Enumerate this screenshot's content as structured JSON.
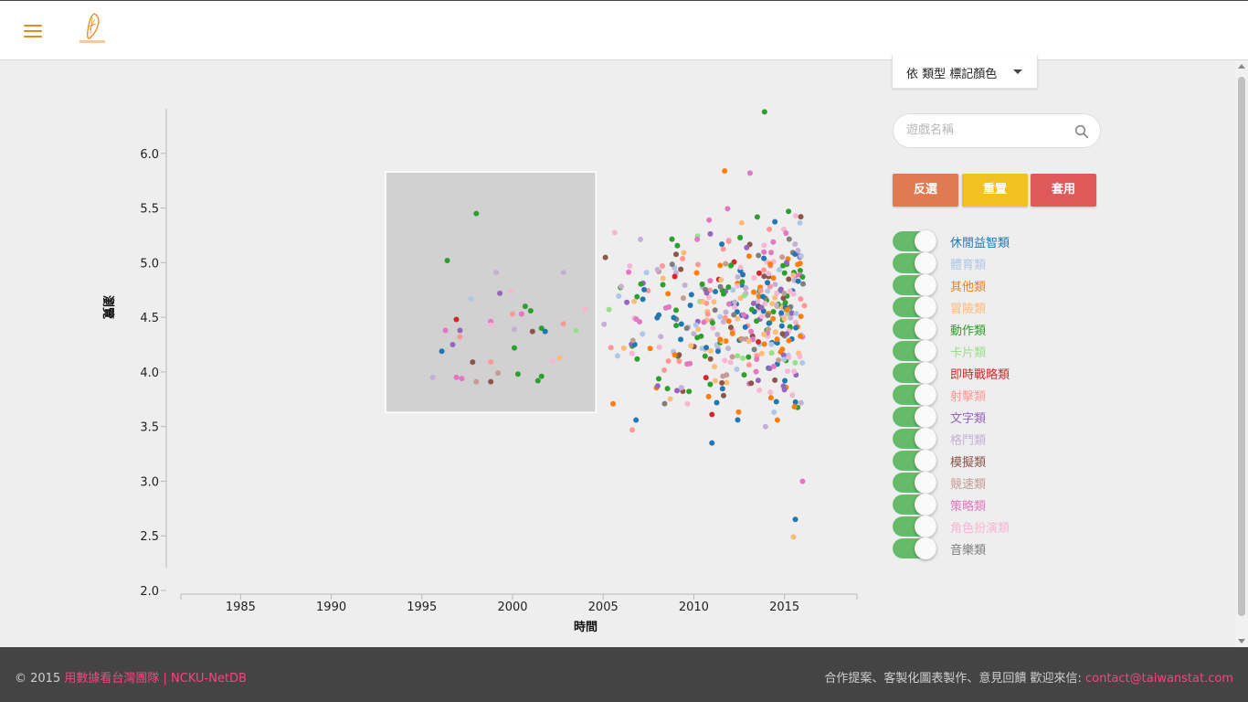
{
  "header": {
    "menu_icon": "hamburger-menu-icon",
    "logo_icon": "taiwan-logo-icon",
    "logo_color": "#f0861f"
  },
  "sidebar": {
    "color_select_label": "依 類型 標記顏色",
    "search_placeholder": "遊戲名稱",
    "buttons": {
      "invert": "反選",
      "reset": "重置",
      "apply": "套用"
    },
    "categories": [
      {
        "label": "休閒益智類",
        "color": "#1f77b4"
      },
      {
        "label": "體育類",
        "color": "#aec7e8"
      },
      {
        "label": "其他類",
        "color": "#ff7f0e"
      },
      {
        "label": "冒險類",
        "color": "#ffbb78"
      },
      {
        "label": "動作類",
        "color": "#2ca02c"
      },
      {
        "label": "卡片類",
        "color": "#98df8a"
      },
      {
        "label": "即時戰略類",
        "color": "#d62728"
      },
      {
        "label": "射擊類",
        "color": "#ff9896"
      },
      {
        "label": "文字類",
        "color": "#9467bd"
      },
      {
        "label": "格鬥類",
        "color": "#c5b0d5"
      },
      {
        "label": "模擬類",
        "color": "#8c564b"
      },
      {
        "label": "競速類",
        "color": "#c49c94"
      },
      {
        "label": "策略類",
        "color": "#e377c2"
      },
      {
        "label": "角色扮演類",
        "color": "#f7b6d2"
      },
      {
        "label": "音樂類",
        "color": "#7f7f7f"
      }
    ]
  },
  "chart_data": {
    "type": "scatter",
    "xlabel": "時間",
    "ylabel": "瀏覽",
    "xlim": [
      1981,
      2019
    ],
    "ylim": [
      2.0,
      6.4
    ],
    "x_ticks": [
      "1985",
      "1990",
      "1995",
      "2000",
      "2005",
      "2010",
      "2015"
    ],
    "y_ticks": [
      "2.0",
      "2.5",
      "3.0",
      "3.5",
      "4.0",
      "4.5",
      "5.0",
      "5.5",
      "6.0"
    ],
    "selection": {
      "x": [
        1993,
        2004.6
      ],
      "y": [
        3.63,
        5.83
      ]
    },
    "points": [
      [
        1996.4,
        5.02,
        4
      ],
      [
        1998.0,
        5.45,
        4
      ],
      [
        1997.7,
        4.67,
        1
      ],
      [
        1999.1,
        4.91,
        9
      ],
      [
        2002.8,
        4.91,
        9
      ],
      [
        1999.9,
        4.74,
        13
      ],
      [
        1999.3,
        4.72,
        8
      ],
      [
        2000.7,
        4.6,
        4
      ],
      [
        2001.0,
        4.56,
        4
      ],
      [
        2000.5,
        4.53,
        12
      ],
      [
        2000.0,
        4.53,
        7
      ],
      [
        1996.3,
        4.38,
        12
      ],
      [
        1997.1,
        4.38,
        8
      ],
      [
        1997.1,
        4.32,
        7
      ],
      [
        1996.9,
        4.48,
        6
      ],
      [
        1998.8,
        4.46,
        12
      ],
      [
        1998.8,
        4.43,
        13
      ],
      [
        2000.1,
        4.39,
        9
      ],
      [
        2001.1,
        4.37,
        10
      ],
      [
        2001.6,
        4.4,
        4
      ],
      [
        2001.8,
        4.37,
        0
      ],
      [
        2002.8,
        4.44,
        7
      ],
      [
        2003.5,
        4.38,
        5
      ],
      [
        2004.0,
        4.57,
        13
      ],
      [
        1996.7,
        4.25,
        8
      ],
      [
        1996.1,
        4.19,
        0
      ],
      [
        2000.1,
        4.22,
        4
      ],
      [
        1997.8,
        4.09,
        10
      ],
      [
        1998.8,
        4.09,
        7
      ],
      [
        2002.6,
        4.13,
        3
      ],
      [
        1999.2,
        3.99,
        11
      ],
      [
        2000.3,
        3.98,
        4
      ],
      [
        1996.9,
        3.95,
        12
      ],
      [
        1997.2,
        3.94,
        12
      ],
      [
        1995.6,
        3.95,
        9
      ],
      [
        1998.8,
        3.91,
        10
      ],
      [
        2001.4,
        3.92,
        4
      ],
      [
        2001.6,
        3.96,
        4
      ],
      [
        1998.0,
        3.91,
        11
      ],
      [
        2002.2,
        4.1,
        13
      ]
    ]
  },
  "footer": {
    "copyright_prefix": "© 2015",
    "team_link": "用數據看台灣團隊",
    "separator": "|",
    "lab_link": "NCKU-NetDB",
    "contact_text": "合作提案、客製化圖表製作、意見回饋 歡迎來信:",
    "contact_email": "contact@taiwanstat.com"
  }
}
